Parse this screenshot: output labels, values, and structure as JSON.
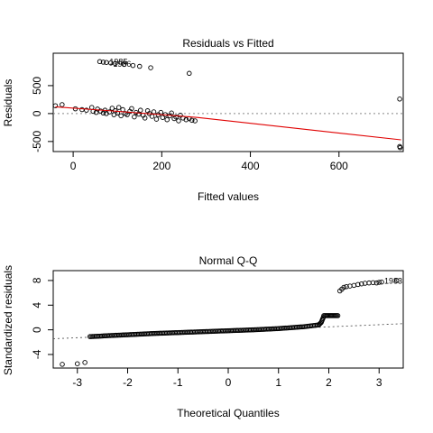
{
  "chart_data": [
    {
      "type": "scatter",
      "title": "Residuals vs Fitted",
      "xlabel": "Fitted values",
      "ylabel": "Residuals",
      "xlim": [
        -45,
        745
      ],
      "ylim": [
        -680,
        1080
      ],
      "xticks": [
        0,
        200,
        400,
        600
      ],
      "yticks": [
        -500,
        0,
        500
      ],
      "zero_line": 0,
      "smooth_line": [
        [
          -40,
          120
        ],
        [
          100,
          40
        ],
        [
          200,
          -20
        ],
        [
          280,
          -70
        ],
        [
          740,
          -470
        ]
      ],
      "annotations": [
        {
          "x": 76,
          "y": 925,
          "label": "1985"
        },
        {
          "x": 84,
          "y": 890,
          "label": "1986"
        }
      ],
      "points": [
        [
          -40,
          140
        ],
        [
          -25,
          160
        ],
        [
          5,
          85
        ],
        [
          20,
          70
        ],
        [
          30,
          60
        ],
        [
          42,
          110
        ],
        [
          45,
          40
        ],
        [
          52,
          20
        ],
        [
          55,
          80
        ],
        [
          62,
          45
        ],
        [
          68,
          10
        ],
        [
          72,
          60
        ],
        [
          75,
          0
        ],
        [
          82,
          30
        ],
        [
          88,
          95
        ],
        [
          92,
          -20
        ],
        [
          95,
          50
        ],
        [
          100,
          10
        ],
        [
          103,
          110
        ],
        [
          108,
          -40
        ],
        [
          112,
          70
        ],
        [
          118,
          0
        ],
        [
          122,
          -20
        ],
        [
          128,
          40
        ],
        [
          132,
          90
        ],
        [
          138,
          -60
        ],
        [
          142,
          20
        ],
        [
          148,
          -10
        ],
        [
          152,
          60
        ],
        [
          158,
          -30
        ],
        [
          162,
          -80
        ],
        [
          168,
          50
        ],
        [
          172,
          0
        ],
        [
          178,
          -50
        ],
        [
          182,
          30
        ],
        [
          188,
          -100
        ],
        [
          192,
          -20
        ],
        [
          198,
          20
        ],
        [
          202,
          -70
        ],
        [
          208,
          -20
        ],
        [
          212,
          -110
        ],
        [
          218,
          -40
        ],
        [
          222,
          10
        ],
        [
          228,
          -90
        ],
        [
          232,
          -60
        ],
        [
          238,
          -130
        ],
        [
          242,
          -30
        ],
        [
          248,
          -80
        ],
        [
          255,
          -110
        ],
        [
          262,
          -90
        ],
        [
          268,
          -120
        ],
        [
          275,
          -130
        ],
        [
          60,
          930
        ],
        [
          68,
          920
        ],
        [
          75,
          915
        ],
        [
          85,
          905
        ],
        [
          95,
          895
        ],
        [
          115,
          880
        ],
        [
          135,
          860
        ],
        [
          150,
          845
        ],
        [
          175,
          820
        ],
        [
          262,
          720
        ],
        [
          737,
          260
        ],
        [
          737,
          -590
        ],
        [
          738,
          -610
        ]
      ]
    },
    {
      "type": "scatter",
      "title": "Normal Q-Q",
      "xlabel": "Theoretical Quantiles",
      "ylabel": "Standardized residuals",
      "xlim": [
        -3.48,
        3.48
      ],
      "ylim": [
        -6.2,
        9.6
      ],
      "xticks": [
        -3,
        -2,
        -1,
        0,
        1,
        2,
        3
      ],
      "yticks": [
        -4,
        0,
        4,
        8
      ],
      "reference_line": [
        [
          -3.48,
          -1.45
        ],
        [
          3.48,
          1.0
        ]
      ],
      "annotations": [
        {
          "x": 3.05,
          "y": 7.9,
          "label": "1983"
        }
      ],
      "outliers_low": [
        [
          -3.3,
          -5.6
        ],
        [
          -3.0,
          -5.5
        ],
        [
          -2.85,
          -5.3
        ]
      ],
      "outliers_high": [
        [
          3.35,
          8.0
        ]
      ],
      "bulk_curve": [
        [
          -2.75,
          -1.1
        ],
        [
          -2.6,
          -1.05
        ],
        [
          -2.4,
          -0.95
        ],
        [
          -2.0,
          -0.8
        ],
        [
          -1.5,
          -0.6
        ],
        [
          -1.0,
          -0.45
        ],
        [
          -0.5,
          -0.3
        ],
        [
          0.0,
          -0.15
        ],
        [
          0.5,
          0.0
        ],
        [
          1.0,
          0.2
        ],
        [
          1.5,
          0.5
        ],
        [
          1.8,
          0.8
        ],
        [
          1.85,
          1.2
        ],
        [
          1.9,
          2.2
        ]
      ],
      "plateau_range": [
        1.9,
        2.18
      ],
      "plateau_value": 2.3,
      "upper_tail": [
        [
          2.22,
          6.3
        ],
        [
          2.26,
          6.6
        ],
        [
          2.3,
          6.9
        ],
        [
          2.35,
          7.0
        ],
        [
          2.42,
          7.1
        ],
        [
          2.5,
          7.2
        ],
        [
          2.58,
          7.35
        ],
        [
          2.65,
          7.45
        ],
        [
          2.72,
          7.55
        ],
        [
          2.8,
          7.6
        ],
        [
          2.88,
          7.65
        ],
        [
          2.95,
          7.6
        ],
        [
          3.0,
          7.7
        ],
        [
          3.05,
          7.75
        ]
      ]
    }
  ]
}
